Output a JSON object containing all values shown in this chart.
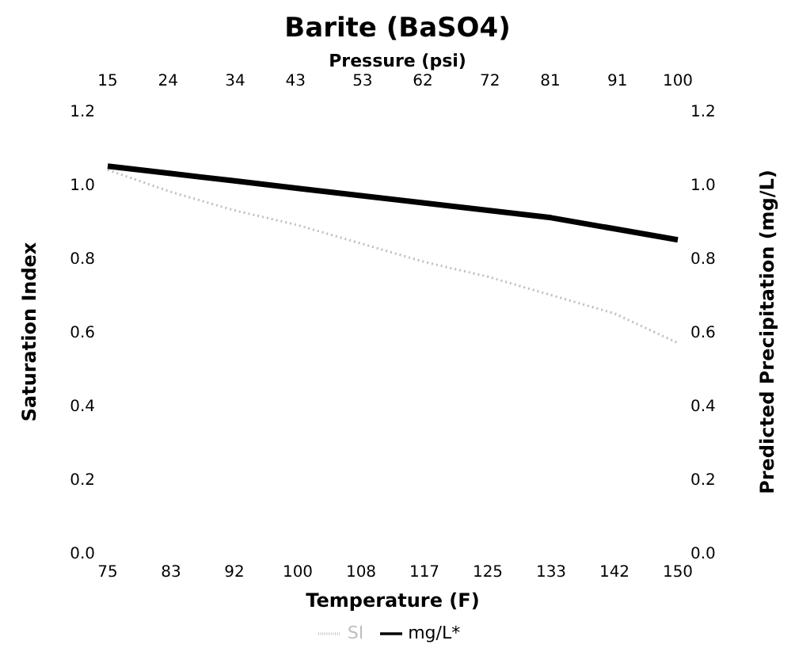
{
  "chart_data": {
    "type": "line",
    "title": "Barite (BaSO4)",
    "xlabel": "Temperature (F)",
    "x2label": "Pressure (psi)",
    "ylabel": "Saturation Index",
    "y2label": "Predicted Precipitation (mg/L)",
    "categories": [
      "75",
      "83",
      "92",
      "100",
      "108",
      "117",
      "125",
      "133",
      "142",
      "150"
    ],
    "x2lim": [
      15,
      100
    ],
    "x2ticks": [
      15,
      24,
      34,
      43,
      53,
      62,
      72,
      81,
      91,
      100
    ],
    "ylim": [
      0,
      1.2
    ],
    "yticks": [
      {
        "value": 0,
        "label": "0.0"
      },
      0.2,
      0.4,
      0.6,
      0.8,
      {
        "value": 1,
        "label": "1.0"
      },
      1.2
    ],
    "y2lim": [
      0,
      1.2
    ],
    "y2ticks": [
      {
        "value": 0,
        "label": "0.0"
      },
      0.2,
      0.4,
      0.6,
      0.8,
      {
        "value": 1,
        "label": "1.0"
      },
      1.2
    ],
    "series": [
      {
        "name": "SI",
        "color": "#bfbfbf",
        "line_style": "dotted",
        "values": [
          1.04,
          0.98,
          0.93,
          0.89,
          0.84,
          0.79,
          0.75,
          0.7,
          0.65,
          0.57
        ]
      },
      {
        "name": "mg/L*",
        "color": "#000000",
        "values": [
          1.05,
          1.03,
          1.01,
          0.99,
          0.97,
          0.95,
          0.93,
          0.91,
          0.88,
          0.85
        ]
      }
    ],
    "grid": false,
    "legend": "bottom",
    "marker": "none"
  }
}
